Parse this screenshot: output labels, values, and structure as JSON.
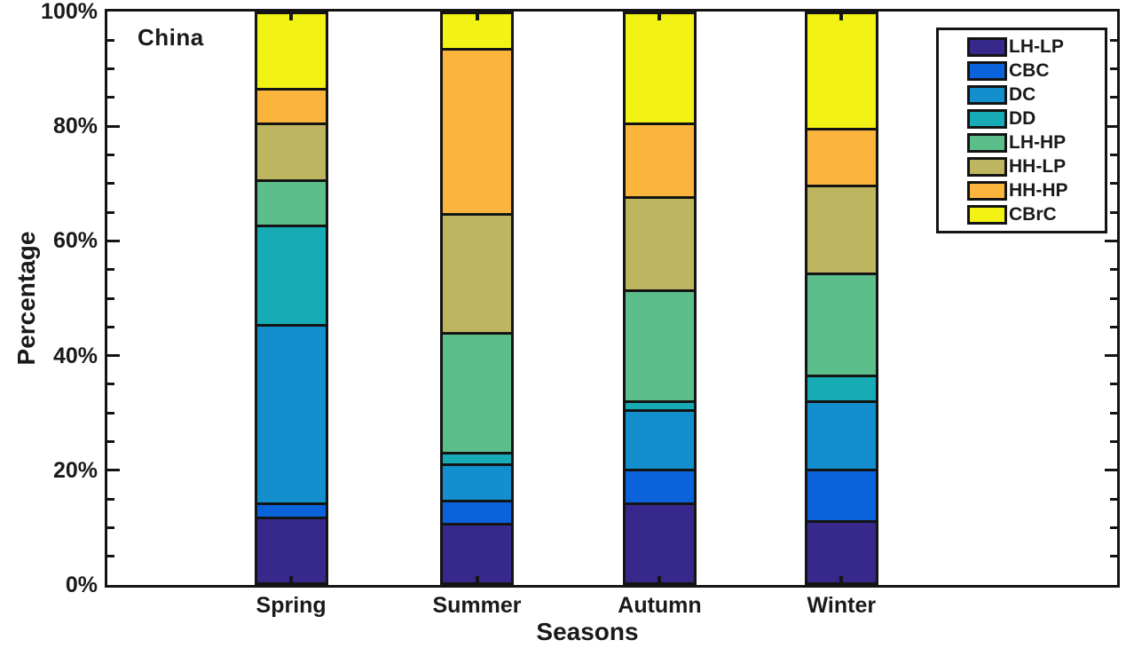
{
  "figure": {
    "region_label": "China"
  },
  "axes": {
    "ylabel": "Percentage",
    "xlabel": "Seasons",
    "ytick_labels": [
      "0%",
      "20%",
      "40%",
      "60%",
      "80%",
      "100%"
    ],
    "ytick_values": [
      0,
      20,
      40,
      60,
      80,
      100
    ],
    "minor_tick_step": 5,
    "axis_color": "#141414"
  },
  "chart_data": {
    "type": "bar",
    "stacked": true,
    "title": "China",
    "xlabel": "Seasons",
    "ylabel": "Percentage",
    "ylim": [
      0,
      100
    ],
    "grid": false,
    "legend_position": "top-right",
    "categories": [
      "Spring",
      "Summer",
      "Autumn",
      "Winter"
    ],
    "series": [
      {
        "name": "LH-LP",
        "color": "#37288C",
        "values": [
          11.5,
          10.5,
          14.0,
          11.0
        ]
      },
      {
        "name": "CBC",
        "color": "#0B63DB",
        "values": [
          2.5,
          4.0,
          6.0,
          9.0
        ]
      },
      {
        "name": "DC",
        "color": "#148FCD",
        "values": [
          31.5,
          6.5,
          10.5,
          12.0
        ]
      },
      {
        "name": "DD",
        "color": "#17ACB5",
        "values": [
          17.5,
          2.0,
          1.5,
          4.5
        ]
      },
      {
        "name": "LH-HP",
        "color": "#5CBE8B",
        "values": [
          8.0,
          21.0,
          19.5,
          18.0
        ]
      },
      {
        "name": "HH-LP",
        "color": "#BDB55F",
        "values": [
          10.0,
          21.0,
          16.5,
          15.5
        ]
      },
      {
        "name": "HH-HP",
        "color": "#FBB53C",
        "values": [
          6.0,
          29.0,
          13.0,
          10.0
        ]
      },
      {
        "name": "CBrC",
        "color": "#F2F214",
        "values": [
          13.0,
          6.0,
          19.0,
          20.0
        ]
      }
    ]
  },
  "legend": {
    "items": [
      "LH-LP",
      "CBC",
      "DC",
      "DD",
      "LH-HP",
      "HH-LP",
      "HH-HP",
      "CBrC"
    ]
  }
}
